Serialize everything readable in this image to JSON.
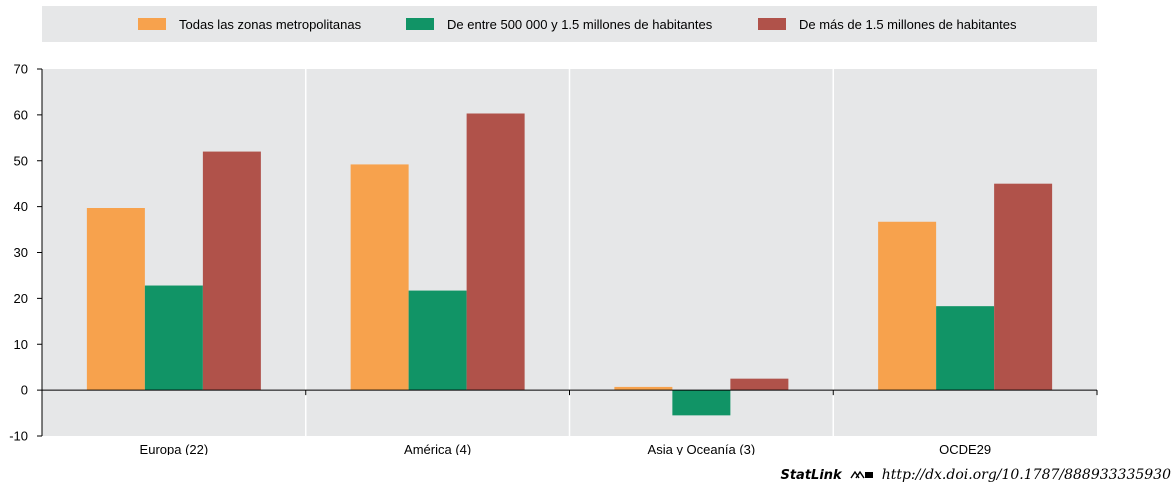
{
  "chart_data": {
    "type": "bar",
    "categories": [
      "Europa (22)",
      "América (4)",
      "Asia y Oceanía (3)",
      "OCDE29"
    ],
    "series": [
      {
        "name": "Todas las zonas metropolitanas",
        "color": "#f7a24d",
        "values": [
          39.7,
          49.2,
          0.7,
          36.7
        ]
      },
      {
        "name": "De entre 500 000 y 1.5 millones de habitantes",
        "color": "#119466",
        "values": [
          22.8,
          21.7,
          -5.5,
          18.3
        ]
      },
      {
        "name": "De más de 1.5 millones de habitantes",
        "color": "#b0524a",
        "values": [
          52.0,
          60.3,
          2.5,
          45.0
        ]
      }
    ],
    "ylim": [
      -10,
      70
    ],
    "yticks": [
      -10,
      0,
      10,
      20,
      30,
      40,
      50,
      60,
      70
    ],
    "grid": true,
    "legend_position": "top"
  },
  "footer": {
    "statlink_label": "StatLink",
    "statlink_icon": "ms-logo-icon",
    "url": "http://dx.doi.org/10.1787/888933335930"
  }
}
